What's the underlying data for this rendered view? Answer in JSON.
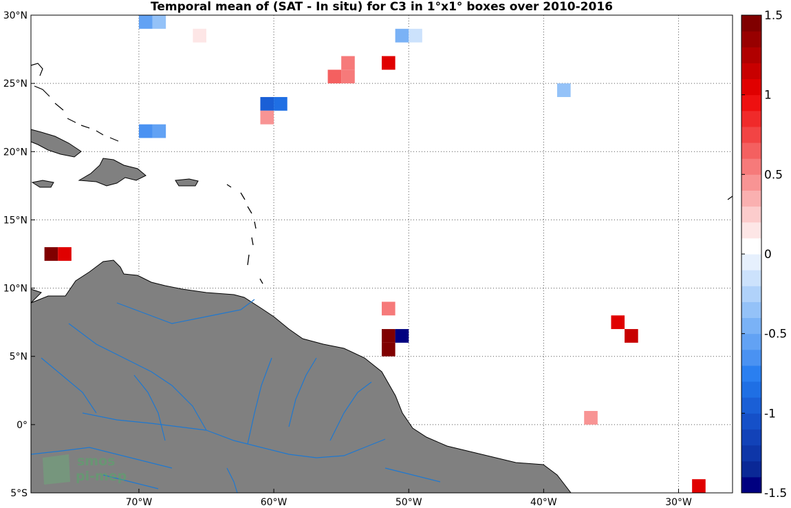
{
  "chart_data": {
    "type": "heatmap",
    "title": "Temporal mean of (SAT - In situ) for C3 in 1°x1° boxes over 2010-2016",
    "xlim": [
      -78,
      -26
    ],
    "ylim": [
      -5,
      30
    ],
    "xticks": [
      -70,
      -60,
      -50,
      -40,
      -30
    ],
    "xtick_labels": [
      "70°W",
      "60°W",
      "50°W",
      "40°W",
      "30°W"
    ],
    "yticks": [
      30,
      25,
      20,
      15,
      10,
      5,
      0,
      -5
    ],
    "ytick_labels": [
      "30°N",
      "25°N",
      "20°N",
      "15°N",
      "10°N",
      "5°N",
      "0°",
      "5°S"
    ],
    "grid": true,
    "colorbar": {
      "range": [
        -1.5,
        1.5
      ],
      "ticks": [
        1.5,
        1,
        0.5,
        0,
        -0.5,
        -1,
        -1.5
      ],
      "tick_labels": [
        "1.5",
        "1",
        "0.5",
        "0",
        "-0.5",
        "-1",
        "-1.5"
      ],
      "colors": [
        "#000080",
        "#0a2896",
        "#0e36a8",
        "#1242b8",
        "#1550c8",
        "#1a5fd6",
        "#1f6fe4",
        "#2a7ff0",
        "#4a92f2",
        "#62a2f4",
        "#7ab2f6",
        "#94c2f8",
        "#b0d2fa",
        "#cce2fc",
        "#e6f0fd",
        "#ffffff",
        "#fde6e6",
        "#fccccc",
        "#fab0b0",
        "#f89494",
        "#f67a7a",
        "#f46060",
        "#f24444",
        "#f02a2a",
        "#ee1010",
        "#e00000",
        "#c80000",
        "#b00000",
        "#980000",
        "#800000"
      ]
    },
    "cells": [
      {
        "lon": -69.5,
        "lat": 29.5,
        "value": -0.55
      },
      {
        "lon": -68.5,
        "lat": 29.5,
        "value": -0.35
      },
      {
        "lon": -65.5,
        "lat": 28.5,
        "value": 0.12
      },
      {
        "lon": -51.5,
        "lat": 26.5,
        "value": 1.0
      },
      {
        "lon": -50.5,
        "lat": 28.5,
        "value": -0.45
      },
      {
        "lon": -49.5,
        "lat": 28.5,
        "value": -0.15
      },
      {
        "lon": -54.5,
        "lat": 26.5,
        "value": 0.55
      },
      {
        "lon": -55.5,
        "lat": 25.5,
        "value": 0.6
      },
      {
        "lon": -54.5,
        "lat": 25.5,
        "value": 0.55
      },
      {
        "lon": -38.5,
        "lat": 24.5,
        "value": -0.3
      },
      {
        "lon": -60.5,
        "lat": 23.5,
        "value": -1.0
      },
      {
        "lon": -59.5,
        "lat": 23.5,
        "value": -0.8
      },
      {
        "lon": -60.5,
        "lat": 22.5,
        "value": 0.4
      },
      {
        "lon": -69.5,
        "lat": 21.5,
        "value": -0.7
      },
      {
        "lon": -68.5,
        "lat": 21.5,
        "value": -0.55
      },
      {
        "lon": -76.5,
        "lat": 12.5,
        "value": 1.5
      },
      {
        "lon": -75.5,
        "lat": 12.5,
        "value": 1.0
      },
      {
        "lon": -51.5,
        "lat": 8.5,
        "value": 0.55
      },
      {
        "lon": -51.5,
        "lat": 6.5,
        "value": 1.5
      },
      {
        "lon": -50.5,
        "lat": 6.5,
        "value": -1.5
      },
      {
        "lon": -51.5,
        "lat": 5.5,
        "value": 1.5
      },
      {
        "lon": -34.5,
        "lat": 7.5,
        "value": 1.0
      },
      {
        "lon": -33.5,
        "lat": 6.5,
        "value": 1.15
      },
      {
        "lon": -36.5,
        "lat": 0.5,
        "value": 0.4
      },
      {
        "lon": -28.5,
        "lat": -4.5,
        "value": 1.0
      }
    ]
  },
  "watermark": {
    "line1": "smos",
    "line2": "pi-mep"
  },
  "colors": {
    "land": "#808080",
    "coast": "#000000",
    "river": "#1e78d0",
    "grid": "#555555"
  }
}
